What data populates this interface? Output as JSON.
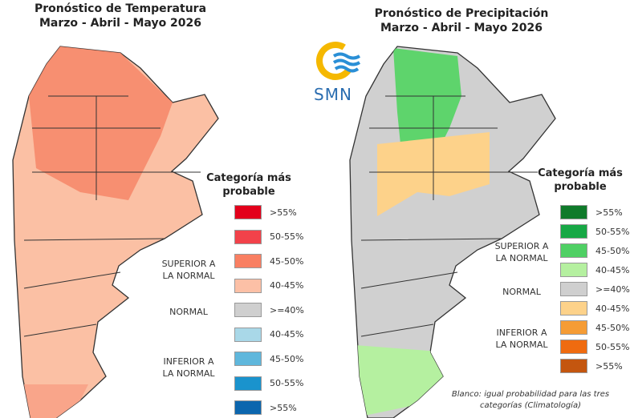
{
  "logo": {
    "text": "SMN"
  },
  "temperature": {
    "title_line1": "Pronóstico de Temperatura",
    "title_line2": "Marzo - Abril - Mayo 2026",
    "legend_title_1": "Categoría más",
    "legend_title_2": "probable",
    "categories": {
      "superior_1": "SUPERIOR A",
      "superior_2": "LA NORMAL",
      "normal": "NORMAL",
      "inferior_1": "INFERIOR A",
      "inferior_2": "LA NORMAL"
    },
    "legend": [
      {
        "label": ">55%",
        "color": "#e3001b"
      },
      {
        "label": "50-55%",
        "color": "#f2424a"
      },
      {
        "label": "45-50%",
        "color": "#f97f62"
      },
      {
        "label": "40-45%",
        "color": "#fcc0a6"
      },
      {
        "label": ">=40%",
        "color": "#cfcfcf"
      },
      {
        "label": "40-45%",
        "color": "#a9d8e8"
      },
      {
        "label": "45-50%",
        "color": "#5fb7dc"
      },
      {
        "label": "50-55%",
        "color": "#1a93cd"
      },
      {
        "label": ">55%",
        "color": "#0c66ae"
      }
    ]
  },
  "precipitation": {
    "title_line1": "Pronóstico de Precipitación",
    "title_line2": "Marzo - Abril - Mayo 2026",
    "legend_title_1": "Categoría más",
    "legend_title_2": "probable",
    "categories": {
      "superior_1": "SUPERIOR A",
      "superior_2": "LA NORMAL",
      "normal": "NORMAL",
      "inferior_1": "INFERIOR A",
      "inferior_2": "LA NORMAL"
    },
    "legend": [
      {
        "label": ">55%",
        "color": "#0f7a2a"
      },
      {
        "label": "50-55%",
        "color": "#17a845"
      },
      {
        "label": "45-50%",
        "color": "#4fd064"
      },
      {
        "label": "40-45%",
        "color": "#b5f0a0"
      },
      {
        "label": ">=40%",
        "color": "#cfcfcf"
      },
      {
        "label": "40-45%",
        "color": "#fdd28a"
      },
      {
        "label": "45-50%",
        "color": "#f59c35"
      },
      {
        "label": "50-55%",
        "color": "#ef6b10"
      },
      {
        "label": ">55%",
        "color": "#c4560f"
      }
    ],
    "note_1": "Blanco: igual probabilidad para las tres",
    "note_2": "categorías (Climatología)"
  }
}
